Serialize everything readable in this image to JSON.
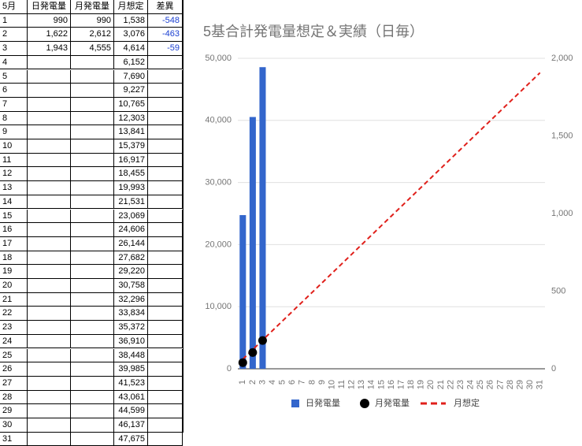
{
  "table": {
    "header": [
      "5月",
      "日発電量",
      "月発電量",
      "月想定",
      "差異"
    ],
    "rows": [
      [
        "1",
        "990",
        "990",
        "1,538",
        "-548"
      ],
      [
        "2",
        "1,622",
        "2,612",
        "3,076",
        "-463"
      ],
      [
        "3",
        "1,943",
        "4,555",
        "4,614",
        "-59"
      ],
      [
        "4",
        null,
        null,
        "6,152",
        null
      ],
      [
        "5",
        null,
        null,
        "7,690",
        null
      ],
      [
        "6",
        null,
        null,
        "9,227",
        null
      ],
      [
        "7",
        null,
        null,
        "10,765",
        null
      ],
      [
        "8",
        null,
        null,
        "12,303",
        null
      ],
      [
        "9",
        null,
        null,
        "13,841",
        null
      ],
      [
        "10",
        null,
        null,
        "15,379",
        null
      ],
      [
        "11",
        null,
        null,
        "16,917",
        null
      ],
      [
        "12",
        null,
        null,
        "18,455",
        null
      ],
      [
        "13",
        null,
        null,
        "19,993",
        null
      ],
      [
        "14",
        null,
        null,
        "21,531",
        null
      ],
      [
        "15",
        null,
        null,
        "23,069",
        null
      ],
      [
        "16",
        null,
        null,
        "24,606",
        null
      ],
      [
        "17",
        null,
        null,
        "26,144",
        null
      ],
      [
        "18",
        null,
        null,
        "27,682",
        null
      ],
      [
        "19",
        null,
        null,
        "29,220",
        null
      ],
      [
        "20",
        null,
        null,
        "30,758",
        null
      ],
      [
        "21",
        null,
        null,
        "32,296",
        null
      ],
      [
        "22",
        null,
        null,
        "33,834",
        null
      ],
      [
        "23",
        null,
        null,
        "35,372",
        null
      ],
      [
        "24",
        null,
        null,
        "36,910",
        null
      ],
      [
        "25",
        null,
        null,
        "38,448",
        null
      ],
      [
        "26",
        null,
        null,
        "39,985",
        null
      ],
      [
        "27",
        null,
        null,
        "41,523",
        null
      ],
      [
        "28",
        null,
        null,
        "43,061",
        null
      ],
      [
        "29",
        null,
        null,
        "44,599",
        null
      ],
      [
        "30",
        null,
        null,
        "46,137",
        null
      ],
      [
        "31",
        null,
        null,
        "47,675",
        null
      ]
    ]
  },
  "chart_data": {
    "type": "combo",
    "title": "5基合計発電量想定＆実績（日毎）",
    "categories": [
      "1",
      "2",
      "3",
      "4",
      "5",
      "6",
      "7",
      "8",
      "9",
      "10",
      "11",
      "12",
      "13",
      "14",
      "15",
      "16",
      "17",
      "18",
      "19",
      "20",
      "21",
      "22",
      "23",
      "24",
      "25",
      "26",
      "27",
      "28",
      "29",
      "30",
      "31"
    ],
    "series": [
      {
        "name": "日発電量",
        "type": "bar",
        "axis": "y2",
        "color": "#3366cc",
        "values": [
          990,
          1622,
          1943,
          null,
          null,
          null,
          null,
          null,
          null,
          null,
          null,
          null,
          null,
          null,
          null,
          null,
          null,
          null,
          null,
          null,
          null,
          null,
          null,
          null,
          null,
          null,
          null,
          null,
          null,
          null,
          null
        ]
      },
      {
        "name": "月発電量",
        "type": "point",
        "color": "#000000",
        "values": [
          990,
          2612,
          4555,
          null,
          null,
          null,
          null,
          null,
          null,
          null,
          null,
          null,
          null,
          null,
          null,
          null,
          null,
          null,
          null,
          null,
          null,
          null,
          null,
          null,
          null,
          null,
          null,
          null,
          null,
          null,
          null
        ]
      },
      {
        "name": "月想定",
        "type": "line",
        "dashed": true,
        "color": "#e0201b",
        "values": [
          1538,
          3076,
          4614,
          6152,
          7690,
          9227,
          10765,
          12303,
          13841,
          15379,
          16917,
          18455,
          19993,
          21531,
          23069,
          24606,
          26144,
          27682,
          29220,
          30758,
          32296,
          33834,
          35372,
          36910,
          38448,
          39985,
          41523,
          43061,
          44599,
          46137,
          47675
        ]
      }
    ],
    "ylim": [
      0,
      50000
    ],
    "yticks": [
      0,
      {
        "value": 10000,
        "label": "10,000"
      },
      {
        "value": 20000,
        "label": "20,000"
      },
      {
        "value": 30000,
        "label": "30,000"
      },
      {
        "value": 40000,
        "label": "40,000"
      },
      {
        "value": 50000,
        "label": "50,000"
      }
    ],
    "y2lim": [
      0,
      2000
    ],
    "y2ticks": [
      0,
      500,
      {
        "value": 1000,
        "label": "1,000"
      },
      {
        "value": 1500,
        "label": "1,500"
      },
      {
        "value": 2000,
        "label": "2,000"
      }
    ],
    "grid": true,
    "legend": "bottom"
  }
}
